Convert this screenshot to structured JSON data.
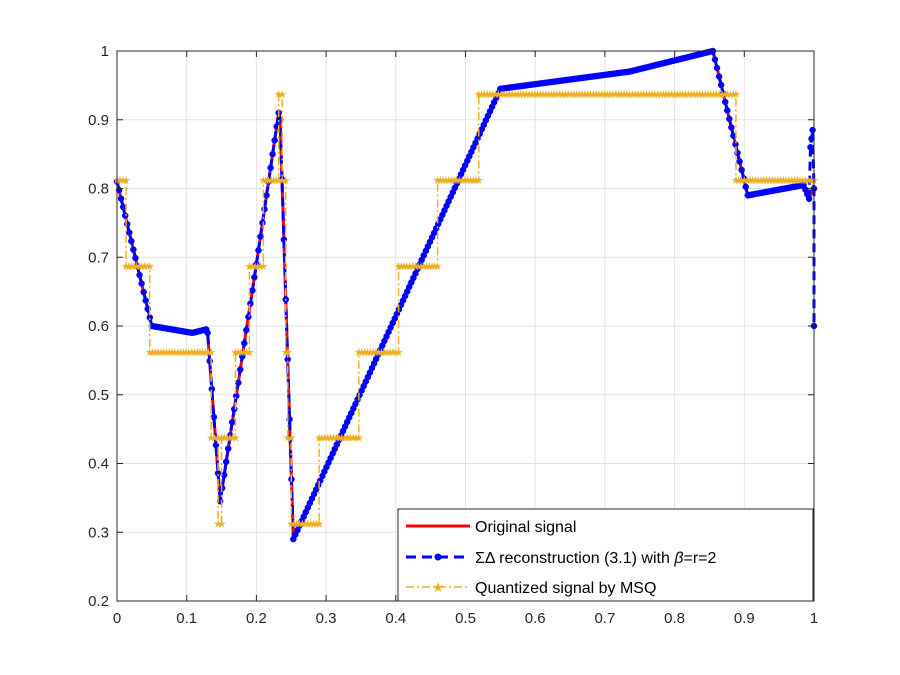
{
  "chart_data": {
    "type": "line",
    "title": "",
    "xlabel": "",
    "ylabel": "",
    "xlim": [
      0,
      1
    ],
    "ylim": [
      0.2,
      1
    ],
    "xticks": [
      0,
      0.1,
      0.2,
      0.3,
      0.4,
      0.5,
      0.6,
      0.7,
      0.8,
      0.9,
      1
    ],
    "xtick_labels": [
      "0",
      "0.1",
      "0.2",
      "0.3",
      "0.4",
      "0.5",
      "0.6",
      "0.7",
      "0.8",
      "0.9",
      "1"
    ],
    "yticks": [
      0.2,
      0.3,
      0.4,
      0.5,
      0.6,
      0.7,
      0.8,
      0.9,
      1
    ],
    "ytick_labels": [
      "0.2",
      "0.3",
      "0.4",
      "0.5",
      "0.6",
      "0.7",
      "0.8",
      "0.9",
      "1"
    ],
    "grid": true,
    "legend_position": "bottom-right",
    "series": [
      {
        "name": "Original signal",
        "color": "#ff0000",
        "style": "solid",
        "points": [
          [
            0,
            0.81
          ],
          [
            0.05,
            0.6
          ],
          [
            0.108,
            0.59
          ],
          [
            0.128,
            0.595
          ],
          [
            0.13,
            0.59
          ],
          [
            0.148,
            0.345
          ],
          [
            0.2,
            0.69
          ],
          [
            0.232,
            0.91
          ],
          [
            0.234,
            0.9
          ],
          [
            0.253,
            0.29
          ],
          [
            0.55,
            0.945
          ],
          [
            0.735,
            0.97
          ],
          [
            0.855,
            1.0
          ],
          [
            0.905,
            0.79
          ],
          [
            0.985,
            0.805
          ],
          [
            0.993,
            0.785
          ],
          [
            1.0,
            0.805
          ]
        ]
      },
      {
        "name": "ΣΔ reconstruction (3.1) with β=r=2",
        "color": "#0000ff",
        "style": "dashed-dot-markers",
        "points": [
          [
            0,
            0.81
          ],
          [
            0.05,
            0.6
          ],
          [
            0.108,
            0.59
          ],
          [
            0.128,
            0.595
          ],
          [
            0.13,
            0.59
          ],
          [
            0.148,
            0.345
          ],
          [
            0.2,
            0.69
          ],
          [
            0.232,
            0.91
          ],
          [
            0.234,
            0.9
          ],
          [
            0.253,
            0.29
          ],
          [
            0.55,
            0.945
          ],
          [
            0.735,
            0.97
          ],
          [
            0.855,
            1.0
          ],
          [
            0.905,
            0.79
          ],
          [
            0.985,
            0.805
          ],
          [
            0.993,
            0.785
          ],
          [
            0.995,
            0.86
          ],
          [
            0.998,
            0.885
          ],
          [
            1.0,
            0.8
          ],
          [
            1.0,
            0.6
          ]
        ]
      },
      {
        "name": "Quantized signal by MSQ",
        "color": "#edb120",
        "style": "dash-dot-star-markers",
        "steps": [
          [
            0.0,
            0.8125
          ],
          [
            0.013,
            0.6875
          ],
          [
            0.047,
            0.5625
          ],
          [
            0.135,
            0.4375
          ],
          [
            0.145,
            0.3125
          ],
          [
            0.15,
            0.4375
          ],
          [
            0.17,
            0.5625
          ],
          [
            0.19,
            0.6875
          ],
          [
            0.21,
            0.8125
          ],
          [
            0.232,
            0.9375
          ],
          [
            0.237,
            0.8125
          ],
          [
            0.242,
            0.5625
          ],
          [
            0.245,
            0.4375
          ],
          [
            0.25,
            0.3125
          ],
          [
            0.29,
            0.4375
          ],
          [
            0.347,
            0.5625
          ],
          [
            0.404,
            0.6875
          ],
          [
            0.46,
            0.8125
          ],
          [
            0.519,
            0.9375
          ],
          [
            0.888,
            0.8125
          ],
          [
            1.0,
            0.8125
          ]
        ]
      }
    ]
  },
  "legend": {
    "original_label": "Original signal",
    "sd_prefix": "ΣΔ reconstruction (3.1) with ",
    "sd_beta": "β",
    "sd_suffix": "=r=2",
    "msq_label": "Quantized signal by MSQ"
  }
}
